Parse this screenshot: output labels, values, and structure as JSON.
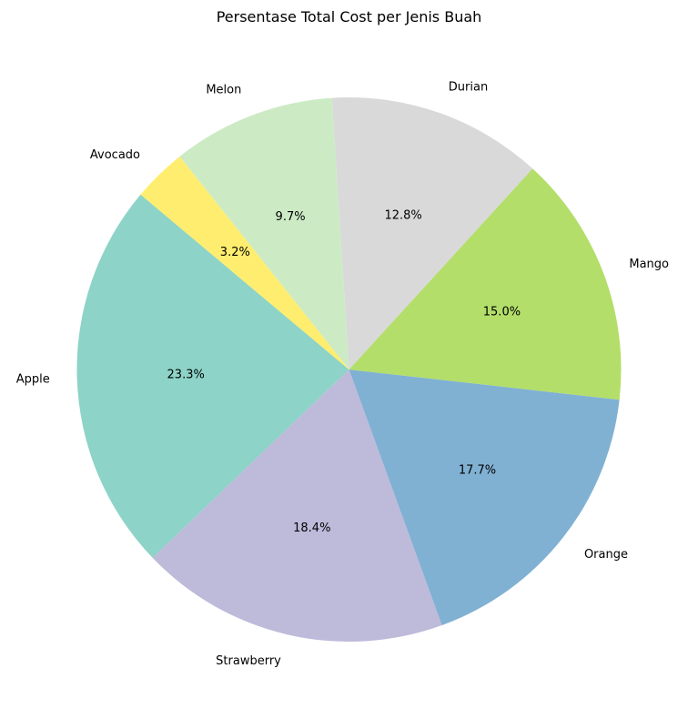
{
  "chart_data": {
    "type": "pie",
    "title": "Persentase Total Cost per Jenis Buah",
    "categories": [
      "Apple",
      "Strawberry",
      "Orange",
      "Mango",
      "Durian",
      "Melon",
      "Avocado"
    ],
    "values": [
      23.3,
      18.4,
      17.7,
      15.0,
      12.8,
      9.7,
      3.2
    ],
    "value_labels": [
      "23.3%",
      "18.4%",
      "17.7%",
      "15.0%",
      "12.8%",
      "9.7%",
      "3.2%"
    ],
    "colors": [
      "#8dd3c7",
      "#bebada",
      "#80b1d3",
      "#b3de69",
      "#d9d9d9",
      "#ccebc5",
      "#ffed6f"
    ],
    "start_angle_deg": 140,
    "direction": "counterclockwise",
    "legend": "none"
  }
}
